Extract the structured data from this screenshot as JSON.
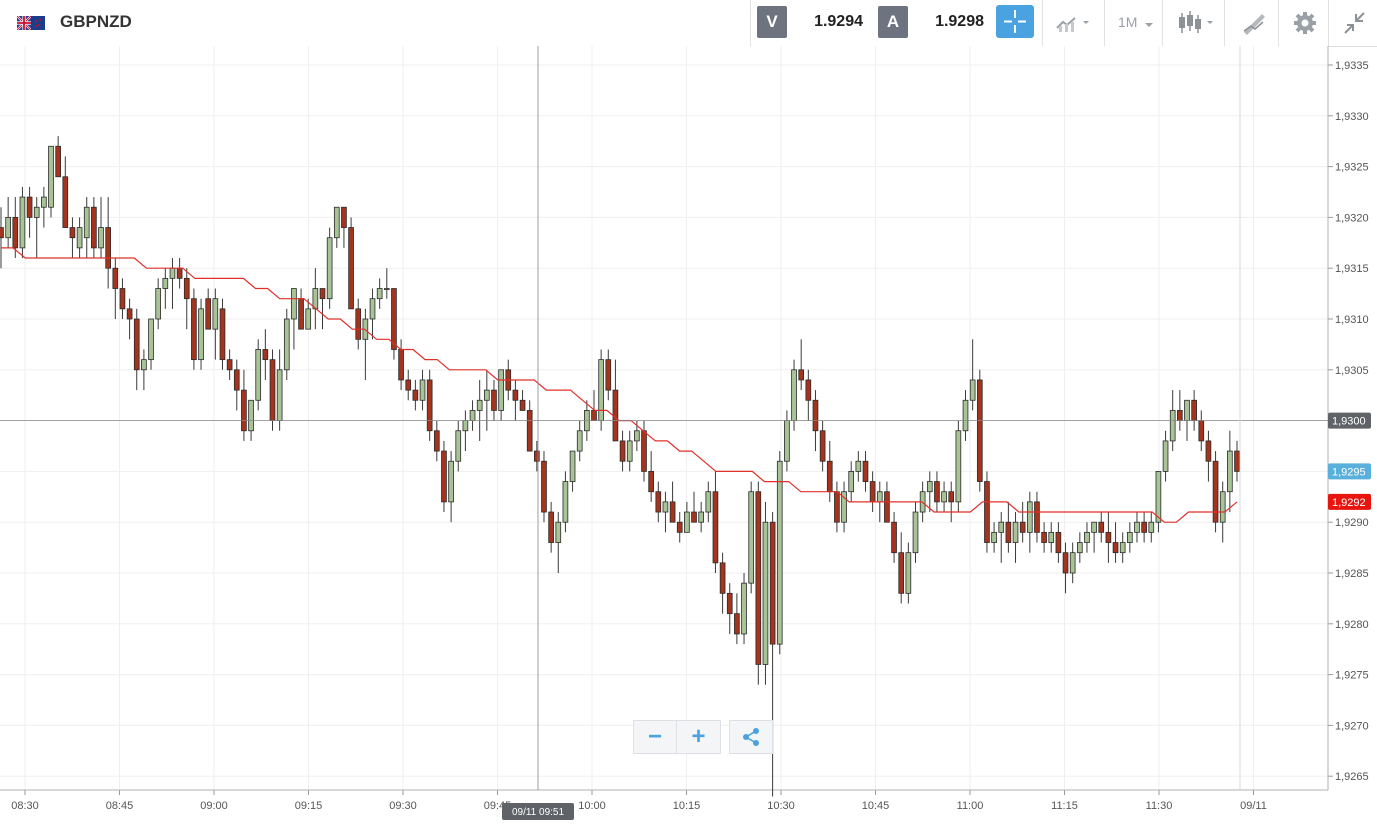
{
  "header": {
    "symbol": "GBPNZD",
    "sell_label": "V",
    "sell_price": "1.9294",
    "buy_label": "A",
    "buy_price": "1.9298",
    "timeframe": "1M",
    "icons": [
      "uk-nz-flag-icon",
      "crosshair-icon",
      "indicators-icon",
      "timeframe-dropdown",
      "candlestick-icon",
      "drawing-tools-icon",
      "gear-icon",
      "collapse-icon"
    ]
  },
  "colors": {
    "bull": "#a8c496",
    "bear": "#a4341e",
    "ma": "#e0302a",
    "accent": "#4aa3e0",
    "current_price_badge": "#5ab0dc",
    "ma_badge": "#e8150f",
    "crosshair_badge": "#5f6368"
  },
  "crosshair": {
    "time_label": "09/11 09:51",
    "price_label": "1,9300"
  },
  "price_badges": {
    "current": "1,9295",
    "ma": "1,9292"
  },
  "chart_data": {
    "type": "candlestick",
    "y_ticks": [
      "1,9335",
      "1,9330",
      "1,9325",
      "1,9320",
      "1,9315",
      "1,9310",
      "1,9305",
      "1,9300",
      "1,9295",
      "1,9290",
      "1,9285",
      "1,9280",
      "1,9275",
      "1,9270",
      "1,9265"
    ],
    "x_ticks": [
      "08:30",
      "08:45",
      "09:00",
      "09:15",
      "09:30",
      "09:45",
      "10:00",
      "10:15",
      "10:30",
      "10:45",
      "11:00",
      "11:15",
      "11:30",
      "09/11"
    ],
    "ylim": [
      1.9262,
      1.9338
    ],
    "grid": true,
    "series_ohlc": [
      [
        1.9319,
        1.9321,
        1.9315,
        1.9318
      ],
      [
        1.9318,
        1.9322,
        1.9317,
        1.932
      ],
      [
        1.932,
        1.9322,
        1.9316,
        1.9317
      ],
      [
        1.9317,
        1.9323,
        1.9316,
        1.9322
      ],
      [
        1.9322,
        1.9323,
        1.9318,
        1.932
      ],
      [
        1.932,
        1.9322,
        1.9316,
        1.9321
      ],
      [
        1.9321,
        1.9323,
        1.9319,
        1.9322
      ],
      [
        1.9321,
        1.9326,
        1.932,
        1.9327
      ],
      [
        1.9327,
        1.9328,
        1.9325,
        1.9324
      ],
      [
        1.9324,
        1.9326,
        1.932,
        1.9319
      ],
      [
        1.9319,
        1.932,
        1.9316,
        1.9318
      ],
      [
        1.9317,
        1.932,
        1.9316,
        1.9319
      ],
      [
        1.9318,
        1.9322,
        1.9316,
        1.9321
      ],
      [
        1.9321,
        1.9322,
        1.9316,
        1.9317
      ],
      [
        1.9317,
        1.9322,
        1.9316,
        1.9319
      ],
      [
        1.9319,
        1.9322,
        1.9313,
        1.9315
      ],
      [
        1.9315,
        1.9316,
        1.931,
        1.9313
      ],
      [
        1.9313,
        1.9314,
        1.931,
        1.9311
      ],
      [
        1.9311,
        1.9312,
        1.9308,
        1.931
      ],
      [
        1.931,
        1.9311,
        1.9303,
        1.9305
      ],
      [
        1.9305,
        1.9307,
        1.9303,
        1.9306
      ],
      [
        1.9306,
        1.931,
        1.9305,
        1.931
      ],
      [
        1.931,
        1.9314,
        1.9309,
        1.9313
      ],
      [
        1.9313,
        1.9315,
        1.9311,
        1.9314
      ],
      [
        1.9314,
        1.9316,
        1.9311,
        1.9315
      ],
      [
        1.9315,
        1.9316,
        1.9313,
        1.9314
      ],
      [
        1.9314,
        1.9315,
        1.9309,
        1.9312
      ],
      [
        1.9312,
        1.9313,
        1.9305,
        1.9306
      ],
      [
        1.9306,
        1.9312,
        1.9305,
        1.9311
      ],
      [
        1.9312,
        1.9313,
        1.9309,
        1.9309
      ],
      [
        1.9309,
        1.9313,
        1.9306,
        1.9312
      ],
      [
        1.9311,
        1.9312,
        1.9305,
        1.9306
      ],
      [
        1.9306,
        1.9307,
        1.9304,
        1.9305
      ],
      [
        1.9305,
        1.9306,
        1.9301,
        1.9303
      ],
      [
        1.9303,
        1.9305,
        1.9298,
        1.9299
      ],
      [
        1.9299,
        1.9301,
        1.9298,
        1.9302
      ],
      [
        1.9302,
        1.9308,
        1.9301,
        1.9307
      ],
      [
        1.9307,
        1.9309,
        1.9304,
        1.9306
      ],
      [
        1.9306,
        1.9307,
        1.9299,
        1.93
      ],
      [
        1.93,
        1.9307,
        1.9299,
        1.9305
      ],
      [
        1.9305,
        1.9311,
        1.9304,
        1.931
      ],
      [
        1.931,
        1.9312,
        1.9307,
        1.9313
      ],
      [
        1.9312,
        1.9313,
        1.9309,
        1.9309
      ],
      [
        1.9309,
        1.9312,
        1.9309,
        1.9311
      ],
      [
        1.9311,
        1.9315,
        1.9309,
        1.9313
      ],
      [
        1.9313,
        1.9313,
        1.9309,
        1.9312
      ],
      [
        1.9312,
        1.9319,
        1.9311,
        1.9318
      ],
      [
        1.9318,
        1.9321,
        1.9317,
        1.9321
      ],
      [
        1.9321,
        1.9321,
        1.9317,
        1.9319
      ],
      [
        1.9319,
        1.932,
        1.9311,
        1.9311
      ],
      [
        1.9311,
        1.9312,
        1.9307,
        1.9308
      ],
      [
        1.9308,
        1.9311,
        1.9304,
        1.931
      ],
      [
        1.931,
        1.9313,
        1.9308,
        1.9312
      ],
      [
        1.9312,
        1.9314,
        1.9311,
        1.9313
      ],
      [
        1.9313,
        1.9315,
        1.9312,
        1.9313
      ],
      [
        1.9313,
        1.9313,
        1.9306,
        1.9307
      ],
      [
        1.9307,
        1.9308,
        1.9303,
        1.9304
      ],
      [
        1.9304,
        1.9305,
        1.9302,
        1.9303
      ],
      [
        1.9303,
        1.9304,
        1.9301,
        1.9302
      ],
      [
        1.9302,
        1.9305,
        1.9301,
        1.9304
      ],
      [
        1.9304,
        1.9305,
        1.9298,
        1.9299
      ],
      [
        1.9299,
        1.93,
        1.9296,
        1.9297
      ],
      [
        1.9297,
        1.9298,
        1.9291,
        1.9292
      ],
      [
        1.9292,
        1.9297,
        1.929,
        1.9296
      ],
      [
        1.9296,
        1.93,
        1.9295,
        1.9299
      ],
      [
        1.9299,
        1.9301,
        1.9297,
        1.93
      ],
      [
        1.93,
        1.9302,
        1.9299,
        1.9301
      ],
      [
        1.9301,
        1.9304,
        1.9298,
        1.9302
      ],
      [
        1.9302,
        1.9305,
        1.9299,
        1.9303
      ],
      [
        1.9303,
        1.9304,
        1.93,
        1.9301
      ],
      [
        1.9301,
        1.9305,
        1.93,
        1.9305
      ],
      [
        1.9305,
        1.9306,
        1.9302,
        1.9303
      ],
      [
        1.9303,
        1.9304,
        1.93,
        1.9302
      ],
      [
        1.9302,
        1.9303,
        1.9301,
        1.9301
      ],
      [
        1.9301,
        1.9302,
        1.9297,
        1.9297
      ],
      [
        1.9297,
        1.9298,
        1.9295,
        1.9296
      ],
      [
        1.9296,
        1.9297,
        1.929,
        1.9291
      ],
      [
        1.9291,
        1.9292,
        1.9287,
        1.9288
      ],
      [
        1.9288,
        1.9291,
        1.9285,
        1.929
      ],
      [
        1.929,
        1.9295,
        1.9289,
        1.9294
      ],
      [
        1.9294,
        1.9297,
        1.9293,
        1.9297
      ],
      [
        1.9297,
        1.93,
        1.9296,
        1.9299
      ],
      [
        1.9299,
        1.9302,
        1.9298,
        1.9301
      ],
      [
        1.9301,
        1.9303,
        1.93,
        1.93
      ],
      [
        1.93,
        1.9307,
        1.9299,
        1.9306
      ],
      [
        1.9306,
        1.9307,
        1.9302,
        1.9303
      ],
      [
        1.9303,
        1.9306,
        1.93,
        1.9298
      ],
      [
        1.9298,
        1.9299,
        1.9295,
        1.9296
      ],
      [
        1.9296,
        1.9299,
        1.9295,
        1.9298
      ],
      [
        1.9298,
        1.93,
        1.9297,
        1.9299
      ],
      [
        1.9299,
        1.93,
        1.9294,
        1.9295
      ],
      [
        1.9295,
        1.9297,
        1.9292,
        1.9293
      ],
      [
        1.9293,
        1.9294,
        1.929,
        1.9291
      ],
      [
        1.9291,
        1.9293,
        1.9289,
        1.9292
      ],
      [
        1.9292,
        1.9294,
        1.929,
        1.929
      ],
      [
        1.929,
        1.9291,
        1.9288,
        1.9289
      ],
      [
        1.9289,
        1.9292,
        1.9289,
        1.9291
      ],
      [
        1.9291,
        1.9293,
        1.929,
        1.929
      ],
      [
        1.929,
        1.9292,
        1.9289,
        1.9291
      ],
      [
        1.9291,
        1.9294,
        1.929,
        1.9293
      ],
      [
        1.9293,
        1.9295,
        1.9285,
        1.9286
      ],
      [
        1.9286,
        1.9287,
        1.9281,
        1.9283
      ],
      [
        1.9283,
        1.9284,
        1.9279,
        1.9281
      ],
      [
        1.9281,
        1.9283,
        1.9278,
        1.9279
      ],
      [
        1.9279,
        1.9285,
        1.9278,
        1.9284
      ],
      [
        1.9284,
        1.9294,
        1.9283,
        1.9293
      ],
      [
        1.9293,
        1.9294,
        1.9274,
        1.9276
      ],
      [
        1.9276,
        1.9292,
        1.9274,
        1.929
      ],
      [
        1.929,
        1.9291,
        1.9263,
        1.9278
      ],
      [
        1.9278,
        1.9297,
        1.9277,
        1.9296
      ],
      [
        1.9296,
        1.9301,
        1.9295,
        1.93
      ],
      [
        1.93,
        1.9306,
        1.9299,
        1.9305
      ],
      [
        1.9305,
        1.9308,
        1.9303,
        1.9304
      ],
      [
        1.9304,
        1.9305,
        1.93,
        1.9302
      ],
      [
        1.9302,
        1.9303,
        1.9297,
        1.9299
      ],
      [
        1.9299,
        1.93,
        1.9295,
        1.9296
      ],
      [
        1.9296,
        1.9298,
        1.9292,
        1.9293
      ],
      [
        1.9293,
        1.9294,
        1.9289,
        1.929
      ],
      [
        1.929,
        1.9294,
        1.9289,
        1.9293
      ],
      [
        1.9293,
        1.9296,
        1.9292,
        1.9295
      ],
      [
        1.9295,
        1.9297,
        1.9294,
        1.9296
      ],
      [
        1.9296,
        1.9297,
        1.9293,
        1.9294
      ],
      [
        1.9294,
        1.9295,
        1.9291,
        1.9292
      ],
      [
        1.9292,
        1.9294,
        1.929,
        1.9293
      ],
      [
        1.9293,
        1.9294,
        1.929,
        1.929
      ],
      [
        1.929,
        1.9291,
        1.9286,
        1.9287
      ],
      [
        1.9287,
        1.9289,
        1.9282,
        1.9283
      ],
      [
        1.9283,
        1.9288,
        1.9282,
        1.9287
      ],
      [
        1.9287,
        1.9292,
        1.9286,
        1.9291
      ],
      [
        1.9291,
        1.9294,
        1.929,
        1.9293
      ],
      [
        1.9293,
        1.9295,
        1.9291,
        1.9294
      ],
      [
        1.9294,
        1.9295,
        1.9291,
        1.9292
      ],
      [
        1.9292,
        1.9294,
        1.9291,
        1.9293
      ],
      [
        1.9293,
        1.9294,
        1.929,
        1.9292
      ],
      [
        1.9292,
        1.93,
        1.9291,
        1.9299
      ],
      [
        1.9299,
        1.9303,
        1.9298,
        1.9302
      ],
      [
        1.9302,
        1.9308,
        1.9301,
        1.9304
      ],
      [
        1.9304,
        1.9305,
        1.9293,
        1.9294
      ],
      [
        1.9294,
        1.9295,
        1.9287,
        1.9288
      ],
      [
        1.9288,
        1.929,
        1.9287,
        1.9289
      ],
      [
        1.9289,
        1.9291,
        1.9286,
        1.929
      ],
      [
        1.929,
        1.9292,
        1.9287,
        1.9288
      ],
      [
        1.9288,
        1.9291,
        1.9286,
        1.929
      ],
      [
        1.929,
        1.9292,
        1.9288,
        1.9289
      ],
      [
        1.9289,
        1.9293,
        1.9287,
        1.9292
      ],
      [
        1.9292,
        1.9293,
        1.9288,
        1.9289
      ],
      [
        1.9289,
        1.929,
        1.9287,
        1.9288
      ],
      [
        1.9288,
        1.929,
        1.9287,
        1.9289
      ],
      [
        1.9289,
        1.929,
        1.9286,
        1.9287
      ],
      [
        1.9287,
        1.9288,
        1.9283,
        1.9285
      ],
      [
        1.9285,
        1.9288,
        1.9284,
        1.9287
      ],
      [
        1.9287,
        1.9289,
        1.9286,
        1.9288
      ],
      [
        1.9288,
        1.929,
        1.9287,
        1.9289
      ],
      [
        1.9289,
        1.929,
        1.9287,
        1.929
      ],
      [
        1.929,
        1.9291,
        1.9288,
        1.9289
      ],
      [
        1.9289,
        1.9291,
        1.9286,
        1.9288
      ],
      [
        1.9288,
        1.929,
        1.9286,
        1.9287
      ],
      [
        1.9287,
        1.9289,
        1.9286,
        1.9288
      ],
      [
        1.9288,
        1.929,
        1.9287,
        1.9289
      ],
      [
        1.9289,
        1.9291,
        1.9288,
        1.929
      ],
      [
        1.929,
        1.9291,
        1.9288,
        1.9289
      ],
      [
        1.9289,
        1.9291,
        1.9288,
        1.929
      ],
      [
        1.929,
        1.9295,
        1.9289,
        1.9295
      ],
      [
        1.9295,
        1.9299,
        1.9294,
        1.9298
      ],
      [
        1.9298,
        1.9303,
        1.9297,
        1.9301
      ],
      [
        1.9301,
        1.9303,
        1.9299,
        1.93
      ],
      [
        1.93,
        1.9302,
        1.9298,
        1.9302
      ],
      [
        1.9302,
        1.9303,
        1.9299,
        1.93
      ],
      [
        1.93,
        1.9301,
        1.9297,
        1.9298
      ],
      [
        1.9298,
        1.9299,
        1.9294,
        1.9296
      ],
      [
        1.9296,
        1.9297,
        1.9289,
        1.929
      ],
      [
        1.929,
        1.9294,
        1.9288,
        1.9293
      ],
      [
        1.9293,
        1.9299,
        1.9291,
        1.9297
      ],
      [
        1.9297,
        1.9298,
        1.9294,
        1.9295
      ]
    ],
    "moving_average": [
      1.9317,
      1.9317,
      1.9316,
      1.9316,
      1.9316,
      1.9316,
      1.9316,
      1.9316,
      1.9316,
      1.9316,
      1.9316,
      1.9316,
      1.9315,
      1.9315,
      1.9315,
      1.9315,
      1.9314,
      1.9314,
      1.9314,
      1.9314,
      1.9314,
      1.9313,
      1.9313,
      1.9312,
      1.9312,
      1.9312,
      1.9311,
      1.931,
      1.931,
      1.9309,
      1.9309,
      1.9308,
      1.9308,
      1.9307,
      1.9307,
      1.9306,
      1.9306,
      1.9305,
      1.9305,
      1.9305,
      1.9305,
      1.9304,
      1.9304,
      1.9304,
      1.9304,
      1.9303,
      1.9303,
      1.9303,
      1.9302,
      1.9301,
      1.9301,
      1.93,
      1.93,
      1.9299,
      1.9298,
      1.9298,
      1.9297,
      1.9297,
      1.9296,
      1.9295,
      1.9295,
      1.9295,
      1.9295,
      1.9294,
      1.9294,
      1.9294,
      1.9293,
      1.9293,
      1.9293,
      1.9293,
      1.9292,
      1.9292,
      1.9292,
      1.9292,
      1.9292,
      1.9292,
      1.9292,
      1.9291,
      1.9291,
      1.9291,
      1.9291,
      1.9292,
      1.9292,
      1.9292,
      1.9291,
      1.9291,
      1.9291,
      1.9291,
      1.9291,
      1.9291,
      1.9291,
      1.9291,
      1.9291,
      1.9291,
      1.9291,
      1.9291,
      1.929,
      1.929,
      1.9291,
      1.9291,
      1.9291,
      1.9291,
      1.9292
    ],
    "last_price": 1.9295,
    "crosshair_price": 1.93,
    "crosshair_time": "09/11 09:51",
    "ma_last": 1.9292
  },
  "zoom": {
    "out_label": "−",
    "in_label": "+"
  }
}
